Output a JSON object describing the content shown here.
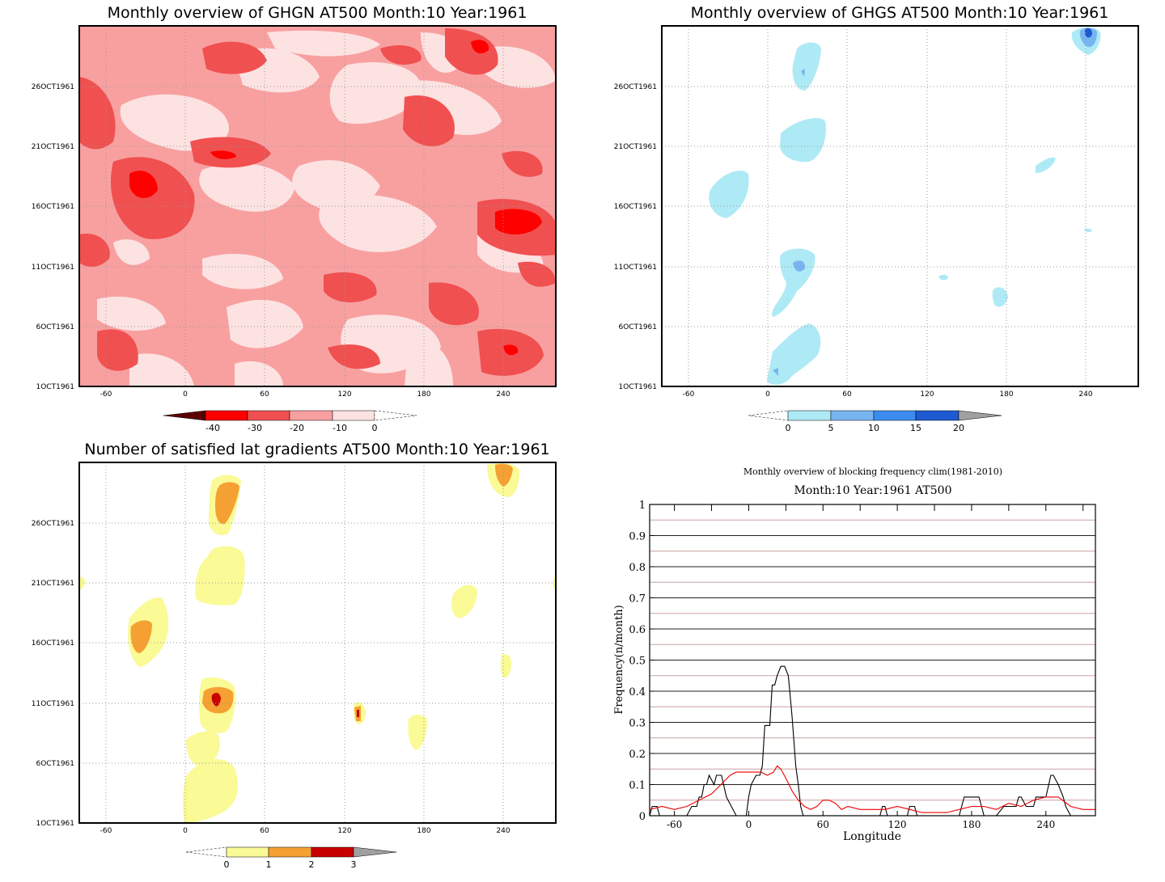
{
  "chart_data": [
    {
      "type": "heatmap",
      "title": "Monthly overview of GHGN AT500 Month:10 Year:1961",
      "x_ticks": [
        "-60",
        "0",
        "60",
        "120",
        "180",
        "240"
      ],
      "x_tick_values": [
        -60,
        0,
        60,
        120,
        180,
        240
      ],
      "xlim": [
        -80,
        280
      ],
      "y_ticks": [
        "1OCT1961",
        "6OCT1961",
        "11OCT1961",
        "16OCT1961",
        "21OCT1961",
        "26OCT1961"
      ],
      "y_tick_values": [
        1,
        6,
        11,
        16,
        21,
        26
      ],
      "ylim": [
        1,
        31
      ],
      "grid": true,
      "colorbar": {
        "levels": [
          "-40",
          "-30",
          "-20",
          "-10",
          "0"
        ],
        "colors": [
          "#5a0000",
          "#ff0000",
          "#f05050",
          "#f8a0a0",
          "#fde2e2",
          "#ffffff"
        ]
      }
    },
    {
      "type": "heatmap",
      "title": "Monthly overview of GHGS AT500 Month:10 Year:1961",
      "x_ticks": [
        "-60",
        "0",
        "60",
        "120",
        "180",
        "240"
      ],
      "x_tick_values": [
        -60,
        0,
        60,
        120,
        180,
        240
      ],
      "xlim": [
        -80,
        280
      ],
      "y_ticks": [
        "1OCT1961",
        "6OCT1961",
        "11OCT1961",
        "16OCT1961",
        "21OCT1961",
        "26OCT1961"
      ],
      "y_tick_values": [
        1,
        6,
        11,
        16,
        21,
        26
      ],
      "ylim": [
        1,
        31
      ],
      "grid": true,
      "colorbar": {
        "levels": [
          "0",
          "5",
          "10",
          "15",
          "20"
        ],
        "colors": [
          "#ffffff",
          "#aeeaf5",
          "#78b4f0",
          "#3c8cf0",
          "#1e5ad2",
          "#a0a0a0"
        ]
      }
    },
    {
      "type": "heatmap",
      "title": "Number of satisfied lat gradients AT500 Month:10 Year:1961",
      "x_ticks": [
        "-60",
        "0",
        "60",
        "120",
        "180",
        "240"
      ],
      "x_tick_values": [
        -60,
        0,
        60,
        120,
        180,
        240
      ],
      "xlim": [
        -80,
        280
      ],
      "y_ticks": [
        "1OCT1961",
        "6OCT1961",
        "11OCT1961",
        "16OCT1961",
        "21OCT1961",
        "26OCT1961"
      ],
      "y_tick_values": [
        1,
        6,
        11,
        16,
        21,
        26
      ],
      "ylim": [
        1,
        31
      ],
      "grid": true,
      "colorbar": {
        "levels": [
          "0",
          "1",
          "2",
          "3"
        ],
        "colors": [
          "#ffffff",
          "#fafa96",
          "#f5a032",
          "#c80000",
          "#a0a0a0"
        ]
      }
    },
    {
      "type": "line",
      "title": "Monthly overview of blocking frequency clim(1981-2010)",
      "subtitle": "Month:10 Year:1961  AT500",
      "xlabel": "Longitude",
      "ylabel": "Frequency(n/month)",
      "xlim": [
        -80,
        280
      ],
      "ylim": [
        0,
        1
      ],
      "x_ticks": [
        "-60",
        "0",
        "60",
        "120",
        "180",
        "240"
      ],
      "x_tick_values": [
        -60,
        0,
        60,
        120,
        180,
        240
      ],
      "y_ticks": [
        "0",
        "0.1",
        "0.2",
        "0.3",
        "0.4",
        "0.5",
        "0.6",
        "0.7",
        "0.8",
        "0.9",
        "1"
      ],
      "y_tick_values": [
        0,
        0.1,
        0.2,
        0.3,
        0.4,
        0.5,
        0.6,
        0.7,
        0.8,
        0.9,
        1
      ],
      "grid": true,
      "series": [
        {
          "color": "#000000",
          "x": [
            -80,
            -78,
            -74,
            -72,
            -68,
            -65,
            -58,
            -50,
            -46,
            -42,
            -40,
            -38,
            -36,
            -34,
            -32,
            -28,
            -26,
            -22,
            -18,
            -14,
            -10,
            -6,
            -2,
            0,
            2,
            6,
            9,
            11,
            13,
            15,
            17,
            19,
            21,
            23,
            26,
            29,
            32,
            35,
            38,
            40,
            42,
            44,
            60,
            70,
            80,
            90,
            100,
            106,
            108,
            110,
            112,
            116,
            120,
            128,
            130,
            134,
            136,
            170,
            172,
            174,
            186,
            188,
            190,
            200,
            206,
            208,
            216,
            218,
            220,
            224,
            230,
            232,
            236,
            240,
            244,
            246,
            250,
            254,
            256,
            260,
            280
          ],
          "y": [
            0,
            0.03,
            0.03,
            0,
            0,
            0,
            0,
            0,
            0.03,
            0.03,
            0.06,
            0.06,
            0.1,
            0.1,
            0.13,
            0.1,
            0.13,
            0.13,
            0.06,
            0.03,
            0,
            0,
            0,
            0.06,
            0.1,
            0.13,
            0.13,
            0.16,
            0.29,
            0.29,
            0.29,
            0.42,
            0.42,
            0.45,
            0.48,
            0.48,
            0.45,
            0.32,
            0.16,
            0.1,
            0.03,
            0,
            0,
            0,
            0,
            0,
            0,
            0,
            0.03,
            0.03,
            0,
            0,
            0,
            0,
            0.03,
            0.03,
            0,
            0,
            0.03,
            0.06,
            0.06,
            0.03,
            0,
            0,
            0.03,
            0.03,
            0.03,
            0.06,
            0.06,
            0.03,
            0.03,
            0.06,
            0.06,
            0.06,
            0.13,
            0.13,
            0.1,
            0.06,
            0.03,
            0,
            0
          ]
        },
        {
          "color": "#ee0000",
          "x": [
            -80,
            -70,
            -60,
            -50,
            -40,
            -30,
            -25,
            -20,
            -15,
            -10,
            -5,
            0,
            5,
            10,
            15,
            20,
            23,
            26,
            30,
            35,
            40,
            45,
            50,
            55,
            60,
            65,
            70,
            75,
            80,
            90,
            100,
            110,
            120,
            130,
            140,
            150,
            160,
            170,
            180,
            190,
            200,
            210,
            220,
            230,
            240,
            250,
            260,
            270,
            280
          ],
          "y": [
            0.02,
            0.03,
            0.02,
            0.03,
            0.05,
            0.07,
            0.09,
            0.11,
            0.13,
            0.14,
            0.14,
            0.14,
            0.14,
            0.14,
            0.13,
            0.14,
            0.16,
            0.15,
            0.12,
            0.08,
            0.05,
            0.03,
            0.02,
            0.03,
            0.05,
            0.05,
            0.04,
            0.02,
            0.03,
            0.02,
            0.02,
            0.02,
            0.03,
            0.02,
            0.01,
            0.01,
            0.01,
            0.02,
            0.03,
            0.03,
            0.02,
            0.04,
            0.03,
            0.05,
            0.06,
            0.06,
            0.03,
            0.02,
            0.02
          ]
        }
      ],
      "hlines": {
        "dark": [
          0,
          0.1,
          0.2,
          0.3,
          0.4,
          0.5,
          0.6,
          0.7,
          0.8,
          0.9,
          1
        ],
        "red": [
          0.05,
          0.15,
          0.25,
          0.35,
          0.45,
          0.55,
          0.65,
          0.75,
          0.85,
          0.95
        ]
      }
    }
  ]
}
